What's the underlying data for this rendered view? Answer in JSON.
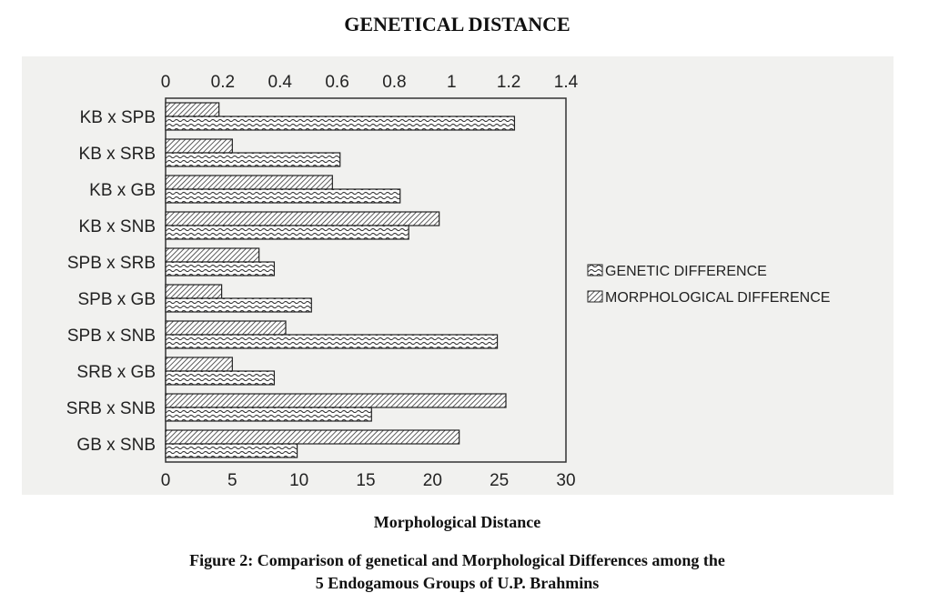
{
  "page": {
    "title": "GENETICAL DISTANCE",
    "bottom_axis_title": "Morphological Distance",
    "caption_line1": "Figure 2: Comparison of genetical and Morphological Differences among the",
    "caption_line2": "5 Endogamous Groups of U.P. Brahmins"
  },
  "chart_data": {
    "type": "bar",
    "orientation": "horizontal",
    "title": "GENETICAL DISTANCE",
    "xlabel": "Morphological Distance",
    "categories": [
      "KB x SPB",
      "KB x SRB",
      "KB x GB",
      "KB x SNB",
      "SPB x SRB",
      "SPB x GB",
      "SPB x SNB",
      "SRB x GB",
      "SRB x SNB",
      "GB x SNB"
    ],
    "top_axis": {
      "range": [
        0,
        1.4
      ],
      "ticks": [
        "0",
        "0.2",
        "0.4",
        "0.6",
        "0.8",
        "1",
        "1.2",
        "1.4"
      ]
    },
    "bottom_axis": {
      "range": [
        0,
        30
      ],
      "ticks": [
        "0",
        "5",
        "10",
        "15",
        "20",
        "25",
        "30"
      ]
    },
    "series": [
      {
        "name": "MORPHOLOGICAL DIFFERENCE",
        "axis": "bottom",
        "pattern": "diagonal-hatch",
        "values": [
          4,
          5,
          12.5,
          20.5,
          7,
          4.2,
          9,
          5,
          25.5,
          22
        ]
      },
      {
        "name": "GENETIC DIFFERENCE",
        "axis": "top",
        "pattern": "wavy",
        "values": [
          1.22,
          0.61,
          0.82,
          0.85,
          0.38,
          0.51,
          1.16,
          0.38,
          0.72,
          0.46
        ]
      }
    ],
    "legend": {
      "position": "right"
    },
    "grid": false
  }
}
